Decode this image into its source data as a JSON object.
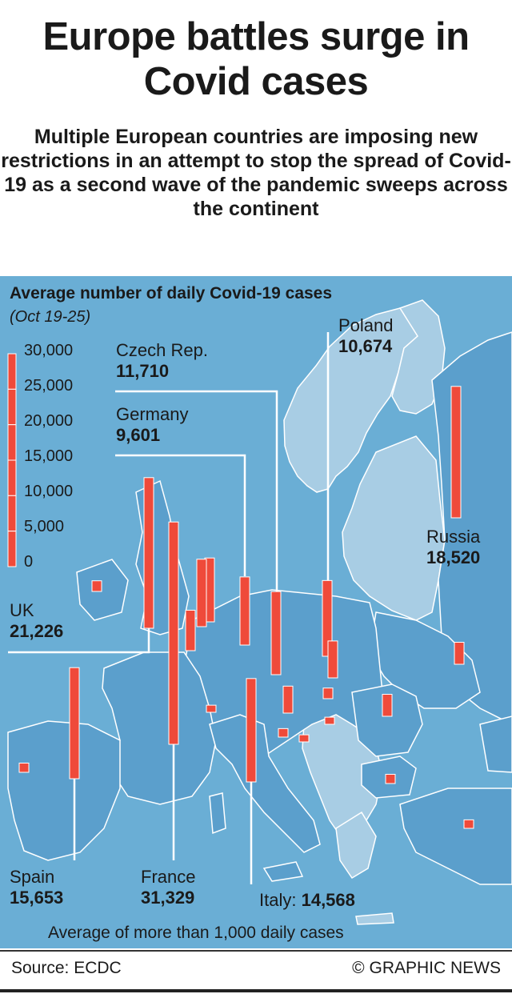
{
  "title": "Europe battles surge in Covid cases",
  "subtitle": "Multiple European countries are imposing new restrictions in an attempt to stop the spread of Covid-19 as a second wave of the pandemic sweeps across the continent",
  "chart_data": {
    "type": "map",
    "title": "Average number of daily Covid-19 cases",
    "subtitle": "(Oct 19-25)",
    "scale": {
      "ticks": [
        "30,000",
        "25,000",
        "20,000",
        "15,000",
        "10,000",
        "5,000",
        "0"
      ],
      "min": 0,
      "max": 30000
    },
    "bar_color": "#ef4a3a",
    "labeled_countries": [
      {
        "name": "Czech Rep.",
        "value_text": "11,710",
        "value": 11710
      },
      {
        "name": "Germany",
        "value_text": "9,601",
        "value": 9601
      },
      {
        "name": "Poland",
        "value_text": "10,674",
        "value": 10674
      },
      {
        "name": "Russia",
        "value_text": "18,520",
        "value": 18520
      },
      {
        "name": "UK",
        "value_text": "21,226",
        "value": 21226
      },
      {
        "name": "Spain",
        "value_text": "15,653",
        "value": 15653
      },
      {
        "name": "France",
        "value_text": "31,329",
        "value": 31329
      },
      {
        "name": "Italy:",
        "value_text": "14,568",
        "value": 14568
      }
    ],
    "unlabeled_bar_values": [
      1300,
      5700,
      9000,
      9500,
      5200,
      3100,
      3800,
      1000,
      1500,
      1200,
      1000,
      1300,
      1200,
      3100,
      1000,
      1500
    ]
  },
  "legend": {
    "label": "Average of more than 1,000 daily cases",
    "swatch_color": "#6aaed5"
  },
  "footer": {
    "source": "Source: ECDC",
    "credit": "© GRAPHIC NEWS"
  },
  "colors": {
    "sea": "#6aaed5",
    "land_highlight": "#5b9fcc",
    "land_other": "#a8cde4",
    "border": "#ffffff",
    "bar": "#ef4a3a"
  }
}
